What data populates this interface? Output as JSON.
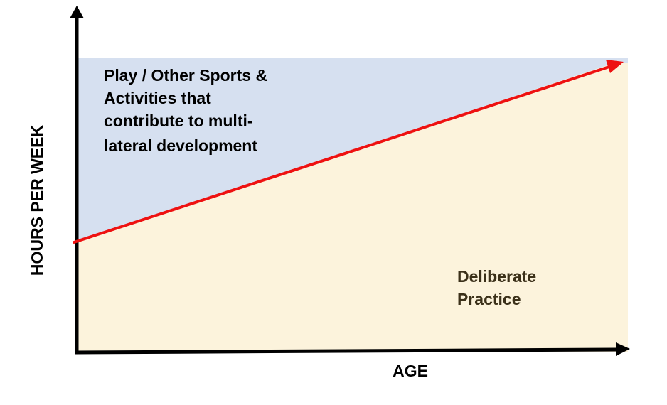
{
  "labels": {
    "y_axis": "HOURS PER WEEK",
    "x_axis": "AGE",
    "upper_region": [
      "Play / Other Sports &",
      "Activities that",
      "contribute to multi-",
      "lateral development"
    ],
    "lower_region": [
      "Deliberate",
      "Practice"
    ]
  },
  "colors": {
    "upper_region": "#d6e0f0",
    "lower_region": "#fcf3dc",
    "divider_line": "#ee1111",
    "axes": "#000000",
    "lower_label_text": "#3b3019",
    "upper_label_text": "#000000"
  }
}
